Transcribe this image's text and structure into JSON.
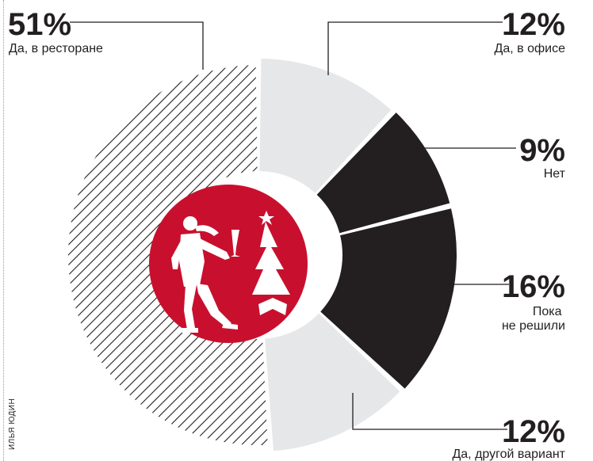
{
  "credit": "ИЛЬЯ ЮДИН",
  "colors": {
    "dark": "#231f20",
    "light": "#e6e7e8",
    "accent": "#c8102e",
    "hatch_bg": "#ffffff"
  },
  "chart_data": {
    "type": "pie",
    "slices": [
      {
        "label": "Да, в офисе",
        "pct_label": "12%",
        "value": 12,
        "fill": "light"
      },
      {
        "label": "Нет",
        "pct_label": "9%",
        "value": 9,
        "fill": "dark"
      },
      {
        "label": "Пока не решили",
        "pct_label": "16%",
        "value": 16,
        "fill": "dark"
      },
      {
        "label": "Да, другой вариант",
        "pct_label": "12%",
        "value": 12,
        "fill": "light"
      },
      {
        "label": "Да, в ресторане",
        "pct_label": "51%",
        "value": 51,
        "fill": "hatched"
      }
    ],
    "center_icon": "dancing-man-christmas-tree-icon"
  }
}
